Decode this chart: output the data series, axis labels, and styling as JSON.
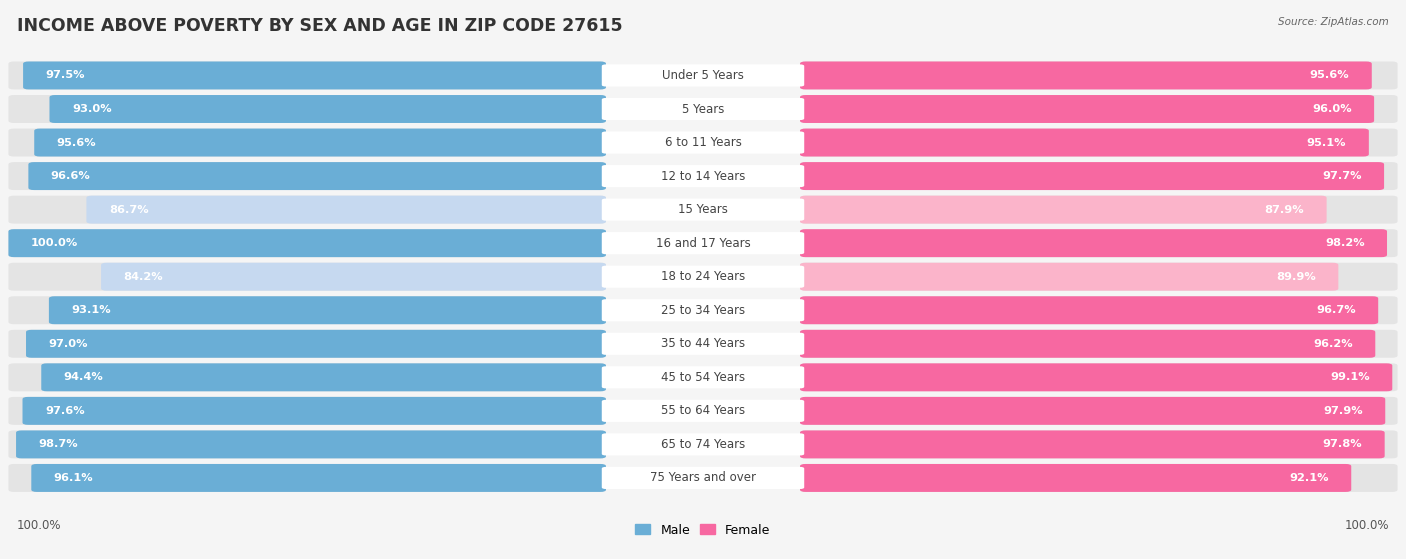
{
  "title": "INCOME ABOVE POVERTY BY SEX AND AGE IN ZIP CODE 27615",
  "source": "Source: ZipAtlas.com",
  "categories": [
    "Under 5 Years",
    "5 Years",
    "6 to 11 Years",
    "12 to 14 Years",
    "15 Years",
    "16 and 17 Years",
    "18 to 24 Years",
    "25 to 34 Years",
    "35 to 44 Years",
    "45 to 54 Years",
    "55 to 64 Years",
    "65 to 74 Years",
    "75 Years and over"
  ],
  "male_values": [
    97.5,
    93.0,
    95.6,
    96.6,
    86.7,
    100.0,
    84.2,
    93.1,
    97.0,
    94.4,
    97.6,
    98.7,
    96.1
  ],
  "female_values": [
    95.6,
    96.0,
    95.1,
    97.7,
    87.9,
    98.2,
    89.9,
    96.7,
    96.2,
    99.1,
    97.9,
    97.8,
    92.1
  ],
  "male_color": "#6aaed6",
  "male_color_light": "#c6d9f0",
  "female_color": "#f768a1",
  "female_color_light": "#fbb4ca",
  "bg_pill_color": "#e4e4e4",
  "background_color": "#f5f5f5",
  "max_value": 100.0,
  "title_fontsize": 12.5,
  "label_fontsize": 8.5,
  "value_fontsize": 8.2,
  "light_threshold": 90.0
}
